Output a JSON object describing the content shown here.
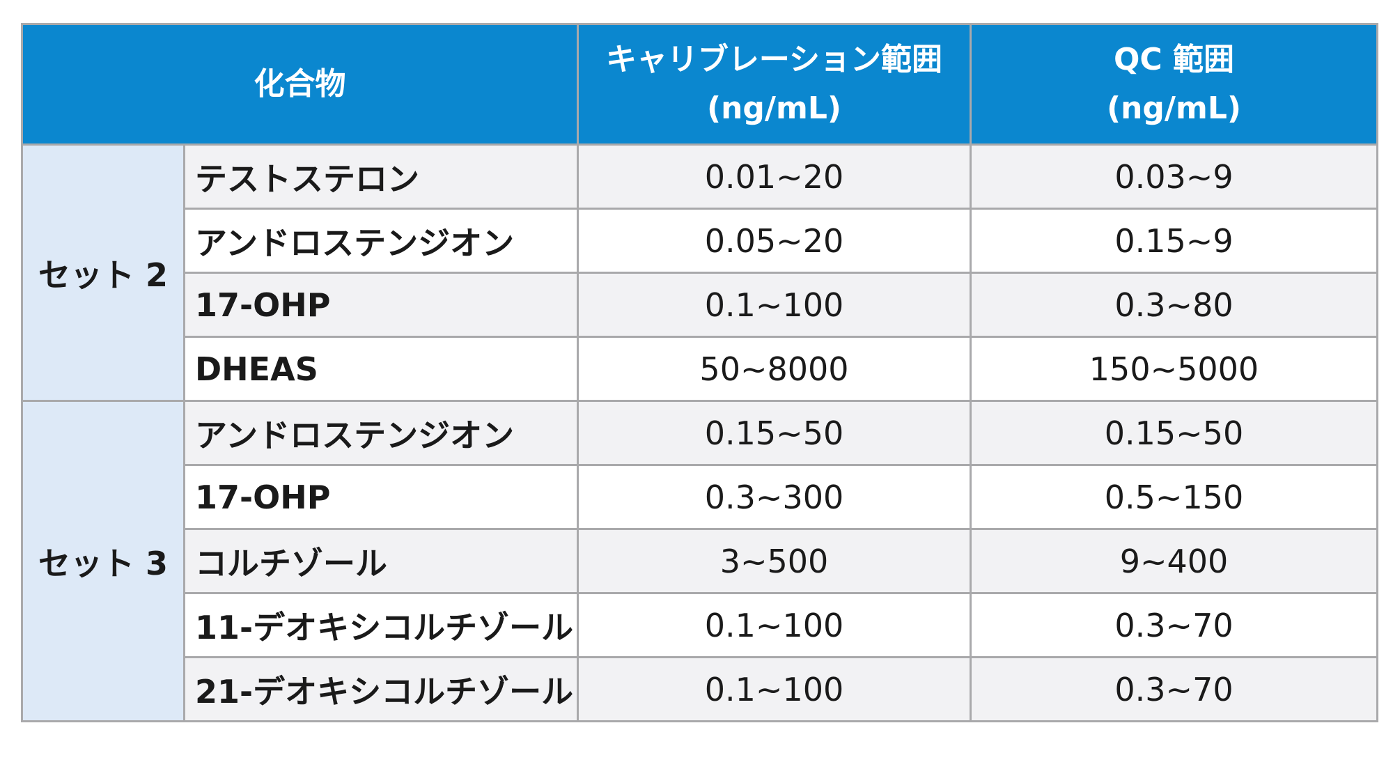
{
  "colors": {
    "header_bg": "#0b87cf",
    "header_text": "#ffffff",
    "set_cell_bg": "#dde9f7",
    "row_stripe": "#f2f2f4",
    "border": "#a9a9ab"
  },
  "header": {
    "compound": "化合物",
    "calibration_line1": "キャリブレーション範囲",
    "calibration_line2": "(ng/mL)",
    "qc_line1": "QC 範囲",
    "qc_line2": "(ng/mL)"
  },
  "sets": [
    {
      "label": "セット 2",
      "rows": [
        {
          "compound": "テストステロン",
          "calibration": "0.01~20",
          "qc": "0.03~9"
        },
        {
          "compound": "アンドロステンジオン",
          "calibration": "0.05~20",
          "qc": "0.15~9"
        },
        {
          "compound": "17-OHP",
          "calibration": "0.1~100",
          "qc": "0.3~80"
        },
        {
          "compound": "DHEAS",
          "calibration": "50~8000",
          "qc": "150~5000"
        }
      ]
    },
    {
      "label": "セット 3",
      "rows": [
        {
          "compound": "アンドロステンジオン",
          "calibration": "0.15~50",
          "qc": "0.15~50"
        },
        {
          "compound": "17-OHP",
          "calibration": "0.3~300",
          "qc": "0.5~150"
        },
        {
          "compound": "コルチゾール",
          "calibration": "3~500",
          "qc": "9~400"
        },
        {
          "compound": "11-デオキシコルチゾール",
          "calibration": "0.1~100",
          "qc": "0.3~70"
        },
        {
          "compound": "21-デオキシコルチゾール",
          "calibration": "0.1~100",
          "qc": "0.3~70"
        }
      ]
    }
  ]
}
